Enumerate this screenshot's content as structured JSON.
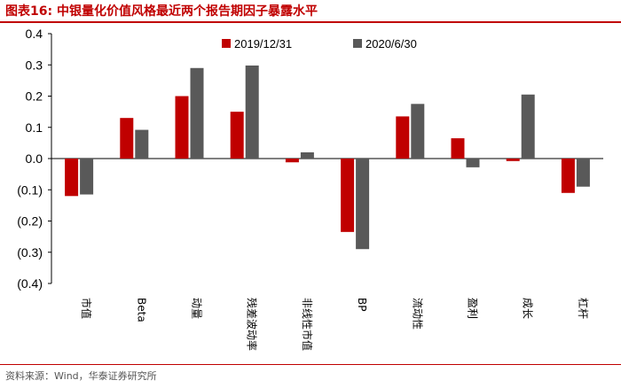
{
  "header": {
    "title": "图表16:   中银量化价值风格最近两个报告期因子暴露水平"
  },
  "footer": {
    "source": "资料来源：Wind，华泰证券研究所"
  },
  "colors": {
    "accent": "#c00000",
    "series_1": "#c00000",
    "series_2": "#595959"
  },
  "chart_data": {
    "type": "bar",
    "categories": [
      "市值",
      "Beta",
      "动量",
      "残差波动率",
      "非线性市值",
      "BP",
      "流动性",
      "盈利",
      "成长",
      "杠杆"
    ],
    "series": [
      {
        "name": "2019/12/31",
        "values": [
          -0.12,
          0.13,
          0.2,
          0.15,
          -0.012,
          -0.235,
          0.135,
          0.065,
          -0.008,
          -0.11
        ]
      },
      {
        "name": "2020/6/30",
        "values": [
          -0.115,
          0.092,
          0.29,
          0.298,
          0.02,
          -0.29,
          0.175,
          -0.028,
          0.205,
          -0.09
        ]
      }
    ],
    "ylim": [
      -0.4,
      0.4
    ],
    "yticks": [
      0.4,
      0.3,
      0.2,
      0.1,
      0.0,
      -0.1,
      -0.2,
      -0.3,
      -0.4
    ],
    "ytick_labels": [
      "0.4",
      "0.3",
      "0.2",
      "0.1",
      "0.0",
      "(0.1)",
      "(0.2)",
      "(0.3)",
      "(0.4)"
    ],
    "legend_position": "top",
    "grid": false
  }
}
